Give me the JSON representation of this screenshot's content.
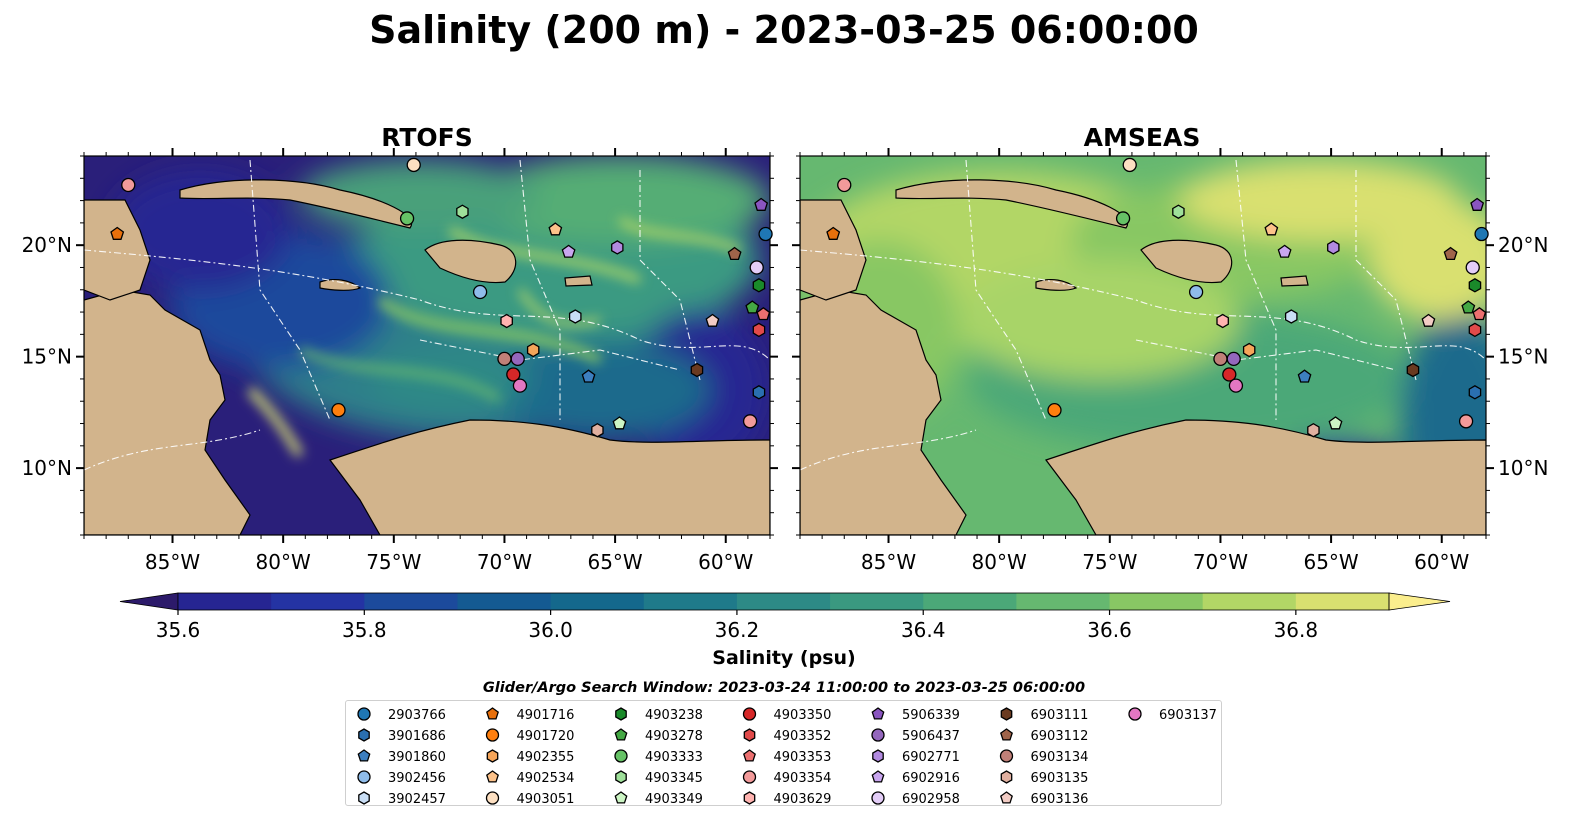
{
  "figure_title": "Salinity (200 m) - 2023-03-25 06:00:00",
  "colorbar": {
    "label": "Salinity (psu)",
    "ticks": [
      "35.6",
      "35.8",
      "36.0",
      "36.2",
      "36.4",
      "36.6",
      "36.8"
    ],
    "min": 35.55,
    "max": 36.95,
    "levels": [
      35.6,
      35.7,
      35.8,
      35.9,
      36.0,
      36.1,
      36.2,
      36.3,
      36.4,
      36.5,
      36.6,
      36.7,
      36.8,
      36.9
    ],
    "colors": [
      "#2c1a6a",
      "#262592",
      "#2433a3",
      "#1c4a9c",
      "#145a92",
      "#14688c",
      "#1f7a8a",
      "#2d8a86",
      "#3a9980",
      "#4ba878",
      "#66b870",
      "#88c764",
      "#b2d666",
      "#d9e070",
      "#fbee8d"
    ],
    "extend": "both"
  },
  "search_window": "Glider/Argo Search Window: 2023-03-24 11:00:00 to 2023-03-25 06:00:00",
  "chart_data": [
    {
      "type": "heatmap",
      "title": "RTOFS",
      "variable": "salinity at 200 m",
      "lon_ticks": [
        "85°W",
        "80°W",
        "75°W",
        "70°W",
        "65°W",
        "60°W"
      ],
      "lat_ticks": [
        "20°N",
        "15°N",
        "10°N"
      ],
      "xlim": [
        -89,
        -58
      ],
      "ylim": [
        7,
        24
      ],
      "overall_appearance": "fresher (35.6-36.0 psu) in the west and in the eastern Caribbean; saltier filaments (36.3-36.7) in the central basin"
    },
    {
      "type": "heatmap",
      "title": "AMSEAS",
      "variable": "salinity at 200 m",
      "lon_ticks": [
        "85°W",
        "80°W",
        "75°W",
        "70°W",
        "65°W",
        "60°W"
      ],
      "lat_ticks": [
        "20°N",
        "15°N",
        "10°N"
      ],
      "xlim": [
        -89,
        -58
      ],
      "ylim": [
        7,
        24
      ],
      "overall_appearance": "mostly 36.4-36.9 psu across the basin; lower values off Venezuela and east of the Antilles"
    }
  ],
  "platforms": [
    {
      "id": "2903766",
      "marker": "circle",
      "color": "#1f77b4",
      "lon": -58.2,
      "lat": 20.5
    },
    {
      "id": "3901686",
      "marker": "hexagon",
      "color": "#2a6fb0",
      "lon": -58.5,
      "lat": 13.4
    },
    {
      "id": "3901860",
      "marker": "pentagon",
      "color": "#3d7fc0",
      "lon": -66.2,
      "lat": 14.1
    },
    {
      "id": "3902456",
      "marker": "circle",
      "color": "#8fbcea",
      "lon": -71.1,
      "lat": 17.9
    },
    {
      "id": "3902457",
      "marker": "hexagon",
      "color": "#c9def5",
      "lon": -66.8,
      "lat": 16.8
    },
    {
      "id": "4901716",
      "marker": "pentagon",
      "color": "#e8700c",
      "lon": -87.5,
      "lat": 20.5
    },
    {
      "id": "4901720",
      "marker": "circle",
      "color": "#ff7f0e",
      "lon": -77.5,
      "lat": 12.6
    },
    {
      "id": "4902355",
      "marker": "hexagon",
      "color": "#f5a55a",
      "lon": -68.7,
      "lat": 15.3
    },
    {
      "id": "4902534",
      "marker": "pentagon",
      "color": "#fcc28a",
      "lon": -67.7,
      "lat": 20.7
    },
    {
      "id": "4903051",
      "marker": "circle",
      "color": "#fde0c2",
      "lon": -74.1,
      "lat": 23.6
    },
    {
      "id": "4903238",
      "marker": "hexagon",
      "color": "#1a8a2a",
      "lon": -58.5,
      "lat": 18.2
    },
    {
      "id": "4903278",
      "marker": "pentagon",
      "color": "#44a844",
      "lon": -58.8,
      "lat": 17.2
    },
    {
      "id": "4903333",
      "marker": "circle",
      "color": "#66c266",
      "lon": -74.4,
      "lat": 21.2
    },
    {
      "id": "4903345",
      "marker": "hexagon",
      "color": "#9fe09a",
      "lon": -71.9,
      "lat": 21.5
    },
    {
      "id": "4903349",
      "marker": "pentagon",
      "color": "#ccf5c4",
      "lon": -64.8,
      "lat": 12.0
    },
    {
      "id": "4903350",
      "marker": "circle",
      "color": "#d62728",
      "lon": -69.6,
      "lat": 14.2
    },
    {
      "id": "4903352",
      "marker": "hexagon",
      "color": "#e14a4a",
      "lon": -58.5,
      "lat": 16.2
    },
    {
      "id": "4903353",
      "marker": "pentagon",
      "color": "#ec7070",
      "lon": -58.3,
      "lat": 16.9
    },
    {
      "id": "4903354",
      "marker": "circle",
      "color": "#f29a9a",
      "lon": -58.9,
      "lat": 12.1
    },
    {
      "id": "4903629",
      "marker": "hexagon",
      "color": "#ffb3b0",
      "lon": -69.9,
      "lat": 16.6
    },
    {
      "id": "5906339",
      "marker": "pentagon",
      "color": "#8a55c0",
      "lon": -58.4,
      "lat": 21.8
    },
    {
      "id": "5906437",
      "marker": "circle",
      "color": "#9467bd",
      "lon": -69.4,
      "lat": 14.9
    },
    {
      "id": "6902771",
      "marker": "hexagon",
      "color": "#b28ae0",
      "lon": -64.9,
      "lat": 19.9
    },
    {
      "id": "6902916",
      "marker": "pentagon",
      "color": "#c9a6ef",
      "lon": -67.1,
      "lat": 19.7
    },
    {
      "id": "6902958",
      "marker": "circle",
      "color": "#e3cdf7",
      "lon": -58.6,
      "lat": 19.0
    },
    {
      "id": "6903111",
      "marker": "hexagon",
      "color": "#6a3a20",
      "lon": -61.3,
      "lat": 14.4
    },
    {
      "id": "6903112",
      "marker": "pentagon",
      "color": "#a0644a",
      "lon": -59.6,
      "lat": 19.6
    },
    {
      "id": "6903134",
      "marker": "circle",
      "color": "#c08078",
      "lon": -70.0,
      "lat": 14.9
    },
    {
      "id": "6903135",
      "marker": "hexagon",
      "color": "#e0b0a0",
      "lon": -65.8,
      "lat": 11.7
    },
    {
      "id": "6903136",
      "marker": "pentagon",
      "color": "#f2ccc4",
      "lon": -60.6,
      "lat": 16.6
    },
    {
      "id": "6903137",
      "marker": "circle",
      "color": "#e377c2",
      "lon": -69.3,
      "lat": 13.7
    },
    {
      "id": "extra_1",
      "marker": "circle",
      "color": "#f29a9a",
      "lon": -87.0,
      "lat": 22.7
    }
  ]
}
